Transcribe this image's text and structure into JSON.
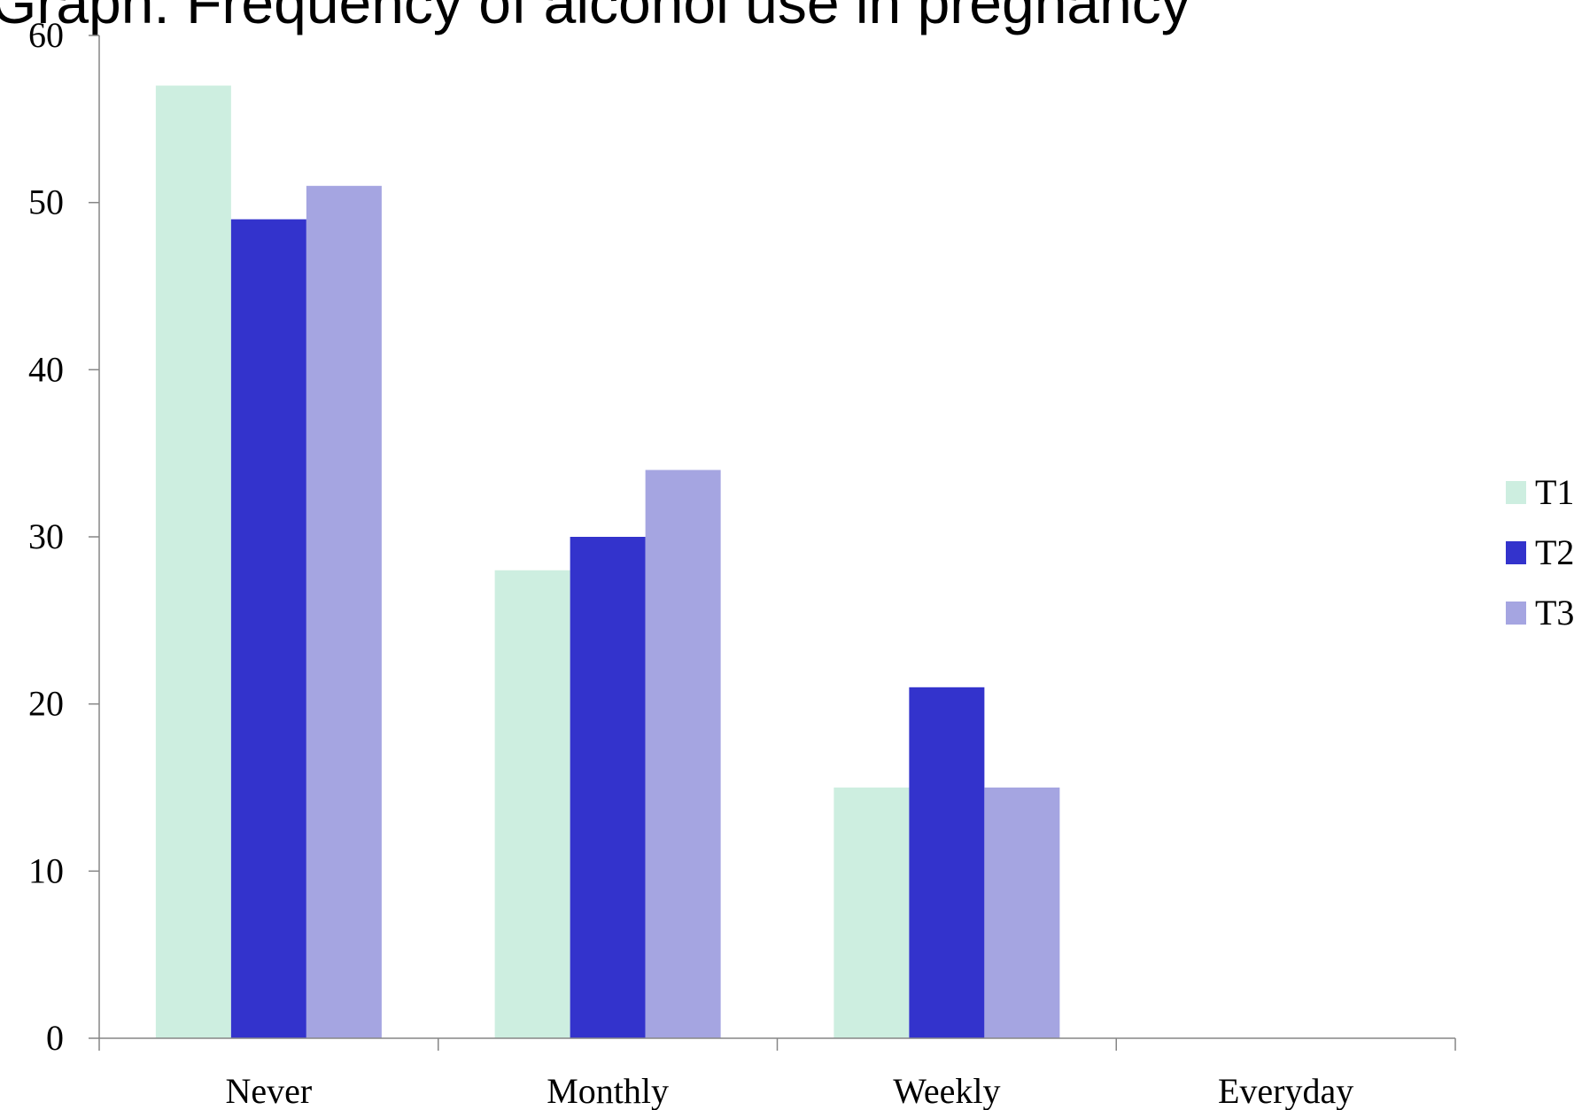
{
  "chart_data": {
    "type": "bar",
    "title": "Graph: Frequency of alcohol use in pregnancy",
    "categories": [
      "Never",
      "Monthly",
      "Weekly",
      "Everyday"
    ],
    "series": [
      {
        "name": "T1",
        "values": [
          57,
          28,
          15,
          0
        ],
        "color": "#cdeee0"
      },
      {
        "name": "T2",
        "values": [
          49,
          30,
          21,
          0
        ],
        "color": "#3333cc"
      },
      {
        "name": "T3",
        "values": [
          51,
          34,
          15,
          0
        ],
        "color": "#a5a5e1"
      }
    ],
    "ylim": [
      0,
      60
    ],
    "yticks": [
      0,
      10,
      20,
      30,
      40,
      50,
      60
    ],
    "grid": false,
    "legend_position": "right",
    "axis_color": "#868686"
  }
}
